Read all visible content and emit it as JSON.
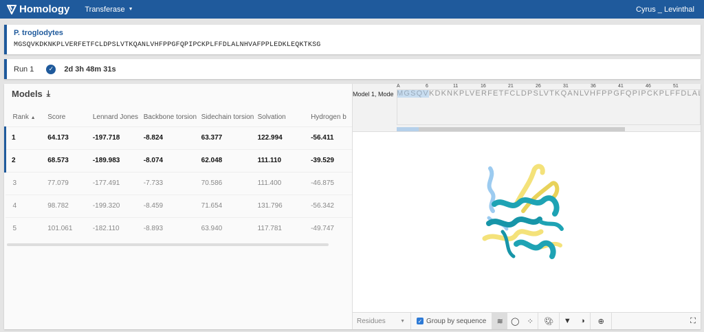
{
  "app": {
    "title": "Homology",
    "menu_label": "Transferase",
    "user": "Cyrus _ Levinthal"
  },
  "target": {
    "species": "P. troglodytes",
    "sequence": "MGSQVKDKNKPLVERFETFCLDPSLVTKQANLVHFPPGFQPIPCKPLFFDLALNHVAFPPLEDKLEQKTKSG"
  },
  "run": {
    "label": "Run 1",
    "status": "complete",
    "runtime": "2d 3h 48m 31s"
  },
  "models": {
    "title": "Models",
    "columns": [
      "Rank",
      "Score",
      "Lennard Jones",
      "Backbone torsion",
      "Sidechain torsion",
      "Solvation",
      "Hydrogen b"
    ],
    "rows": [
      [
        "1",
        "64.173",
        "-197.718",
        "-8.824",
        "63.377",
        "122.994",
        "-56.411"
      ],
      [
        "2",
        "68.573",
        "-189.983",
        "-8.074",
        "62.048",
        "111.110",
        "-39.529"
      ],
      [
        "3",
        "77.079",
        "-177.491",
        "-7.733",
        "70.586",
        "111.400",
        "-46.875"
      ],
      [
        "4",
        "98.782",
        "-199.320",
        "-8.459",
        "71.654",
        "131.796",
        "-56.342"
      ],
      [
        "5",
        "101.061",
        "-182.110",
        "-8.893",
        "63.940",
        "117.781",
        "-49.747"
      ]
    ]
  },
  "sequence_viewer": {
    "model_label": "Model 1, Mode",
    "chain": "A",
    "ticks": [
      "6",
      "11",
      "16",
      "21",
      "26",
      "31",
      "36",
      "41",
      "46",
      "51"
    ],
    "highlighted": "MGSQV",
    "rest": "KDKNKPLVERFETFCLDPSLVTKQANLVHFPPGFQPIPCKPLFFDLALNH"
  },
  "toolbar": {
    "residues_label": "Residues",
    "group_label": "Group by sequence"
  },
  "colors": {
    "brand": "#1f5a9c",
    "helix_teal": "#1ea3b4",
    "helix_yellow": "#f4e27a",
    "coil_blue": "#9ccbf0"
  }
}
